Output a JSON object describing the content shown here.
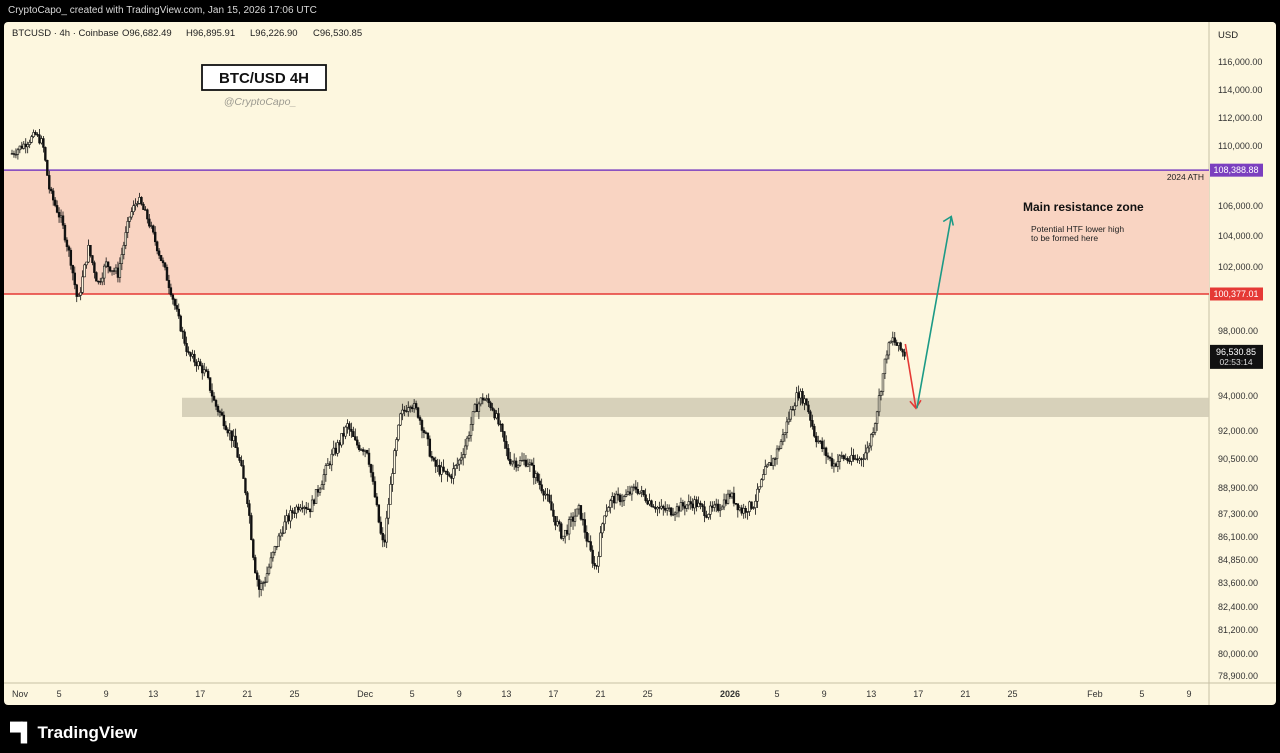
{
  "header": {
    "credit": "CryptoCapo_ created with TradingView.com, Jan 15, 2026 17:06 UTC"
  },
  "symbol_line": "BTCUSD · 4h · Coinbase",
  "ohlc": {
    "open": "O96,682.49",
    "high": "H96,895.91",
    "low": "L96,226.90",
    "close": "C96,530.85"
  },
  "currency_label": "USD",
  "annotations": {
    "title": "BTC/USD 4H",
    "handle": "@CryptoCapo_",
    "resistance_title": "Main resistance zone",
    "resistance_note_1": "Potential HTF lower high",
    "resistance_note_2": "to be formed here",
    "ath_label": "2024 ATH"
  },
  "badges": {
    "ath": "108,388.88",
    "resistance": "100,377.01",
    "last_price": "96,530.85",
    "countdown": "02:53:14"
  },
  "colors": {
    "background": "#fdf7df",
    "resistance_zone": "#f9d4c2",
    "support_zone": "#d3ccb6",
    "ath_line": "#7b3fbf",
    "resistance_line": "#e53935",
    "up_arrow": "#1c9a86",
    "down_arrow": "#e53935"
  },
  "footer": {
    "brand": "TradingView",
    "logo_icon": "tradingview-logo-icon"
  },
  "chart_data": {
    "type": "candlestick",
    "symbol": "BTCUSD",
    "interval": "4h",
    "exchange": "Coinbase",
    "y_ticks": [
      116000,
      114000,
      112000,
      110000,
      106000,
      104000,
      102000,
      98000,
      94000,
      92000,
      90500,
      88900,
      87300,
      86100,
      84850,
      83600,
      82400,
      81200,
      80000,
      78900
    ],
    "x_ticks": [
      {
        "label": "Nov",
        "day": 0
      },
      {
        "label": "5",
        "day": 4
      },
      {
        "label": "9",
        "day": 8
      },
      {
        "label": "13",
        "day": 12
      },
      {
        "label": "17",
        "day": 16
      },
      {
        "label": "21",
        "day": 20
      },
      {
        "label": "25",
        "day": 24
      },
      {
        "label": "Dec",
        "day": 30
      },
      {
        "label": "5",
        "day": 34
      },
      {
        "label": "9",
        "day": 38
      },
      {
        "label": "13",
        "day": 42
      },
      {
        "label": "17",
        "day": 46
      },
      {
        "label": "21",
        "day": 50
      },
      {
        "label": "25",
        "day": 54
      },
      {
        "label": "2026",
        "day": 61
      },
      {
        "label": "5",
        "day": 65
      },
      {
        "label": "9",
        "day": 69
      },
      {
        "label": "13",
        "day": 73
      },
      {
        "label": "17",
        "day": 77
      },
      {
        "label": "21",
        "day": 81
      },
      {
        "label": "25",
        "day": 85
      },
      {
        "label": "Feb",
        "day": 92
      },
      {
        "label": "5",
        "day": 96
      },
      {
        "label": "9",
        "day": 100
      }
    ],
    "levels": {
      "ath": 108388.88,
      "resistance": 100377.01
    },
    "resistance_zone": [
      100377.01,
      108388.88
    ],
    "support_zone": [
      92800,
      93900
    ],
    "price_path": [
      [
        0,
        109500
      ],
      [
        1,
        110100
      ],
      [
        2,
        110800
      ],
      [
        2.6,
        110200
      ],
      [
        3.2,
        107000
      ],
      [
        4.2,
        105000
      ],
      [
        5,
        102400
      ],
      [
        5.6,
        99800
      ],
      [
        6.5,
        103200
      ],
      [
        7.3,
        101000
      ],
      [
        8,
        102200
      ],
      [
        9,
        101600
      ],
      [
        10,
        105300
      ],
      [
        10.7,
        106500
      ],
      [
        11.5,
        105200
      ],
      [
        12.2,
        103600
      ],
      [
        12.8,
        102200
      ],
      [
        13.5,
        100600
      ],
      [
        14.2,
        98600
      ],
      [
        15,
        96500
      ],
      [
        15.8,
        96000
      ],
      [
        16.5,
        95300
      ],
      [
        17.2,
        93600
      ],
      [
        18,
        92600
      ],
      [
        18.8,
        91500
      ],
      [
        19.4,
        90200
      ],
      [
        20,
        88200
      ],
      [
        20.6,
        84600
      ],
      [
        21,
        83300
      ],
      [
        21.5,
        83800
      ],
      [
        22.2,
        85200
      ],
      [
        23,
        86600
      ],
      [
        23.8,
        87400
      ],
      [
        24.6,
        88000
      ],
      [
        25.3,
        87600
      ],
      [
        26,
        88800
      ],
      [
        27,
        90400
      ],
      [
        28,
        91600
      ],
      [
        28.5,
        92300
      ],
      [
        29.2,
        91300
      ],
      [
        30.2,
        91000
      ],
      [
        30.8,
        88500
      ],
      [
        31.3,
        86300
      ],
      [
        31.6,
        85500
      ],
      [
        32.3,
        89800
      ],
      [
        33,
        92800
      ],
      [
        33.8,
        93700
      ],
      [
        34.5,
        93000
      ],
      [
        35.2,
        91600
      ],
      [
        35.8,
        90200
      ],
      [
        36.5,
        89800
      ],
      [
        37.2,
        89500
      ],
      [
        38,
        90400
      ],
      [
        38.7,
        91600
      ],
      [
        39.3,
        93200
      ],
      [
        40,
        93900
      ],
      [
        40.8,
        93400
      ],
      [
        41.5,
        92100
      ],
      [
        42.2,
        90500
      ],
      [
        43,
        90300
      ],
      [
        43.8,
        90400
      ],
      [
        44.5,
        89500
      ],
      [
        45.3,
        88600
      ],
      [
        46,
        87200
      ],
      [
        46.8,
        86100
      ],
      [
        47.4,
        86800
      ],
      [
        48.2,
        87600
      ],
      [
        49,
        85600
      ],
      [
        49.6,
        84300
      ],
      [
        50.3,
        87400
      ],
      [
        51,
        88200
      ],
      [
        52,
        88300
      ],
      [
        53,
        88900
      ],
      [
        54,
        88200
      ],
      [
        55,
        87600
      ],
      [
        56,
        87500
      ],
      [
        57,
        87800
      ],
      [
        58,
        88000
      ],
      [
        59,
        87400
      ],
      [
        60,
        87700
      ],
      [
        61,
        88500
      ],
      [
        62,
        87500
      ],
      [
        63,
        87900
      ],
      [
        64,
        89800
      ],
      [
        64.8,
        90600
      ],
      [
        65.5,
        91700
      ],
      [
        66.3,
        93400
      ],
      [
        66.8,
        94200
      ],
      [
        67.5,
        93600
      ],
      [
        68.2,
        91800
      ],
      [
        69,
        90900
      ],
      [
        69.8,
        90200
      ],
      [
        70.5,
        90600
      ],
      [
        71.3,
        90400
      ],
      [
        72,
        90500
      ],
      [
        72.7,
        91000
      ],
      [
        73.3,
        92500
      ],
      [
        73.8,
        94400
      ],
      [
        74.3,
        96700
      ],
      [
        74.8,
        97500
      ],
      [
        75.3,
        97000
      ],
      [
        75.9,
        96530.85
      ]
    ],
    "last_close": 96530.85
  }
}
